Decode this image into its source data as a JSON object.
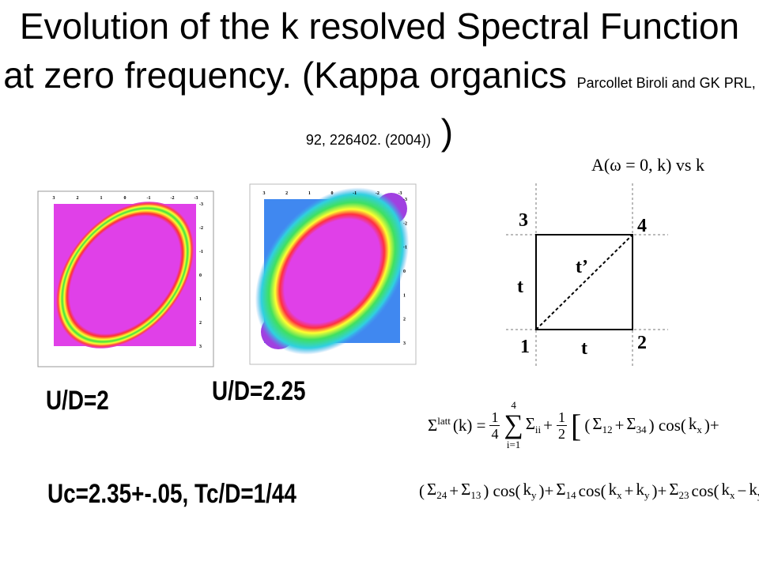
{
  "title": {
    "main": "Evolution of the k resolved  Spectral Function at zero frequency. (Kappa organics",
    "reference": "Parcollet Biroli and GK PRL,  92,  226402. (2004))",
    "close": ")"
  },
  "subtitle_formula": "A(ω = 0, k) vs k",
  "plots": [
    {
      "label": "U/D=2",
      "top_ticks": [
        "3",
        "2",
        "1",
        "0",
        "-1",
        "-2",
        "-3"
      ],
      "right_ticks": [
        "-3",
        "-2",
        "-1",
        "0",
        "1",
        "2",
        "3"
      ]
    },
    {
      "label": "U/D=2.25",
      "top_ticks": [
        "3",
        "2",
        "1",
        "0",
        "-1",
        "-2",
        "-3"
      ],
      "right_ticks": [
        "-3",
        "-2",
        "-1",
        "0",
        "1",
        "2",
        "3"
      ]
    }
  ],
  "critical": "Uc=2.35+-.05, Tc/D=1/44",
  "diagram": {
    "nodes": [
      "1",
      "2",
      "3",
      "4"
    ],
    "bonds": [
      "t",
      "t",
      "t’"
    ]
  },
  "formula": {
    "line1": [
      {
        "text": "Σ",
        "sup": "latt"
      },
      "(k) =",
      {
        "num": "1",
        "den": "4"
      },
      {
        "text": "∑",
        "sub": "i=1",
        "sup": "4"
      },
      {
        "text": "Σ",
        "sub": "ii"
      },
      "+",
      {
        "num": "1",
        "den": "2"
      },
      "[",
      "(",
      {
        "text": "Σ",
        "sub": "12"
      },
      "+",
      {
        "text": "Σ",
        "sub": "34"
      },
      ") cos(",
      {
        "text": "k",
        "sub": "x"
      },
      ")+"
    ],
    "line2": [
      "(",
      {
        "text": "Σ",
        "sub": "24"
      },
      "+",
      {
        "text": "Σ",
        "sub": "13"
      },
      ") cos(",
      {
        "text": "k",
        "sub": "y"
      },
      ")+",
      {
        "text": "Σ",
        "sub": "14"
      },
      "cos(",
      {
        "text": "k",
        "sub": "x"
      },
      "+",
      {
        "text": "k",
        "sub": "y"
      },
      ")+",
      {
        "text": "Σ",
        "sub": "23"
      },
      "cos(",
      {
        "text": "k",
        "sub": "x"
      },
      "−",
      {
        "text": "k",
        "sub": "y"
      },
      ")",
      "]"
    ]
  }
}
